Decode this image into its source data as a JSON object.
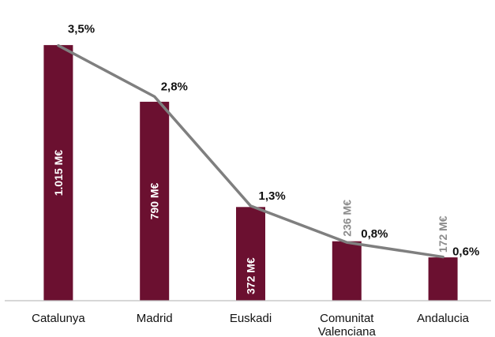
{
  "chart_data": {
    "type": "bar",
    "title": "",
    "xlabel": "",
    "ylabel": "",
    "categories": [
      "Catalunya",
      "Madrid",
      "Euskadi",
      "Comunitat Valenciana",
      "Andalucia"
    ],
    "category_lines": [
      [
        "Catalunya"
      ],
      [
        "Madrid"
      ],
      [
        "Euskadi"
      ],
      [
        "Comunitat",
        "Valenciana"
      ],
      [
        "Andalucia"
      ]
    ],
    "series": [
      {
        "type": "bar",
        "values": [
          1015,
          790,
          372,
          236,
          172
        ],
        "value_labels": [
          "1.015 M€",
          "790 M€",
          "372 M€",
          "236 M€",
          "172 M€"
        ],
        "unit": "M€",
        "color": "#6b1030"
      },
      {
        "type": "line",
        "values": [
          3.5,
          2.8,
          1.3,
          0.8,
          0.6
        ],
        "value_labels": [
          "3,5%",
          "2,8%",
          "1,3%",
          "0,8%",
          "0,6%"
        ],
        "unit": "%",
        "color": "#7f7f7f"
      }
    ],
    "ylim": [
      0,
      1100
    ],
    "y2lim": [
      0,
      3.8
    ],
    "grid": false,
    "legend": "none",
    "colors": {
      "bar": "#6b1030",
      "line": "#7f7f7f",
      "bar_label_inside": "#ffffff",
      "bar_label_outside": "#8c8c8c",
      "axis": "#bfbfbf"
    }
  }
}
